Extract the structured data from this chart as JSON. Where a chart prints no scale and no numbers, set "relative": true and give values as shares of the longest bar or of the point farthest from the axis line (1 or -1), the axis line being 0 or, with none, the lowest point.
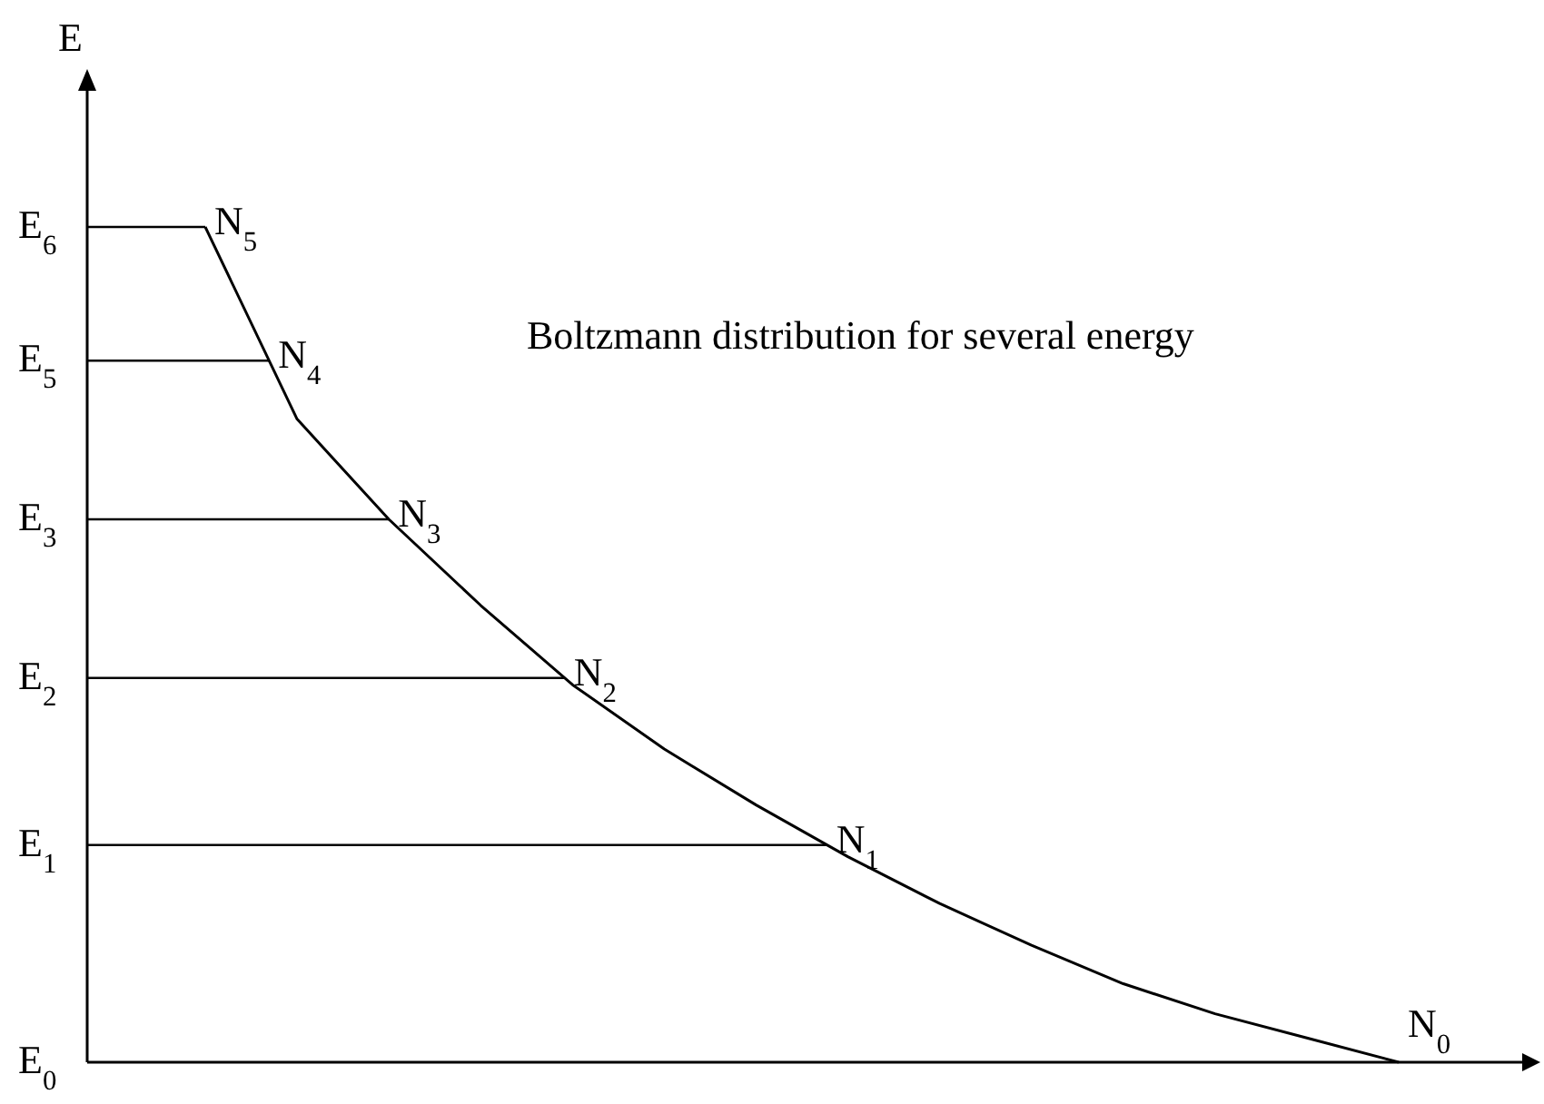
{
  "chart_data": {
    "type": "line",
    "relative": true,
    "ylabel": "E",
    "marker": "none",
    "line_style": "solid",
    "categories": [
      null,
      null,
      null,
      null,
      null,
      null,
      null,
      null,
      null,
      null,
      null,
      null,
      null,
      null
    ],
    "annotations": [
      "Boltzmann distribution for several energy",
      "N$_{5}$",
      "N$_{4}$",
      "N$_{3}$",
      "N$_{2}$",
      "N$_{1}$",
      "N$_{0}$"
    ],
    "ref_lines": [
      {
        "axis": "y",
        "value": 1,
        "label": "E$_{6}$"
      },
      {
        "axis": "y",
        "value": 0.84,
        "label": "E$_{5}$"
      },
      {
        "axis": "y",
        "value": 0.65,
        "label": "E$_{3}$"
      },
      {
        "axis": "y",
        "value": 0.46,
        "label": "E$_{2}$"
      },
      {
        "axis": "y",
        "value": 0.26,
        "label": "E$_{1}$"
      },
      {
        "axis": "y",
        "value": 0,
        "label": "E$_{0}$"
      }
    ],
    "series": [
      {
        "color": "#000000",
        "values": [
          1,
          0.77,
          0.65,
          0.547,
          0.452,
          0.375,
          0.308,
          0.246,
          0.19,
          0.14,
          0.094,
          0.058,
          0.029,
          0
        ]
      }
    ]
  }
}
